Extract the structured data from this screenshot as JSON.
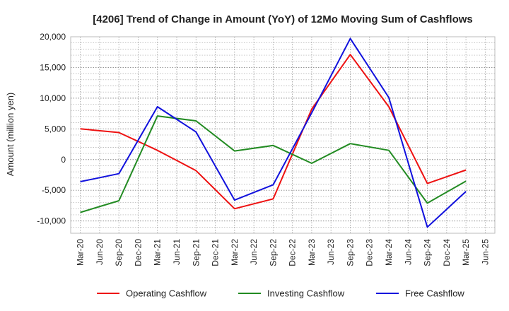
{
  "chart_data": {
    "type": "line",
    "title": "[4206]  Trend of Change in Amount (YoY) of 12Mo Moving Sum of Cashflows",
    "xlabel": "",
    "ylabel": "Amount (million yen)",
    "ylim": [
      -12000,
      20000
    ],
    "yticks": [
      20000,
      15000,
      10000,
      5000,
      0,
      -5000,
      -10000
    ],
    "ytick_labels": [
      "20,000",
      "15,000",
      "10,000",
      "5,000",
      "0",
      "-5,000",
      "-10,000"
    ],
    "categories": [
      "Mar-20",
      "Jun-20",
      "Sep-20",
      "Dec-20",
      "Mar-21",
      "Jun-21",
      "Sep-21",
      "Dec-21",
      "Mar-22",
      "Jun-22",
      "Sep-22",
      "Dec-22",
      "Mar-23",
      "Jun-23",
      "Sep-23",
      "Dec-23",
      "Mar-24",
      "Jun-24",
      "Sep-24",
      "Dec-24",
      "Mar-25",
      "Jun-25"
    ],
    "grid": true,
    "legend_position": "bottom",
    "series": [
      {
        "name": "Operating Cashflow",
        "color": "#ee1111",
        "values": [
          5000,
          null,
          4400,
          null,
          1500,
          null,
          -1800,
          null,
          -8000,
          null,
          -6400,
          null,
          8200,
          null,
          17100,
          null,
          8600,
          null,
          -3900,
          null,
          -1700,
          null
        ]
      },
      {
        "name": "Investing Cashflow",
        "color": "#228B22",
        "values": [
          -8600,
          null,
          -6700,
          null,
          7100,
          null,
          6300,
          null,
          1400,
          null,
          2300,
          null,
          -600,
          null,
          2600,
          null,
          1500,
          null,
          -7100,
          null,
          -3500,
          null
        ]
      },
      {
        "name": "Free Cashflow",
        "color": "#1111dd",
        "values": [
          -3600,
          null,
          -2300,
          null,
          8600,
          null,
          4500,
          null,
          -6600,
          null,
          -4100,
          null,
          7600,
          null,
          19700,
          null,
          10100,
          null,
          -11000,
          null,
          -5200,
          null
        ]
      }
    ]
  }
}
